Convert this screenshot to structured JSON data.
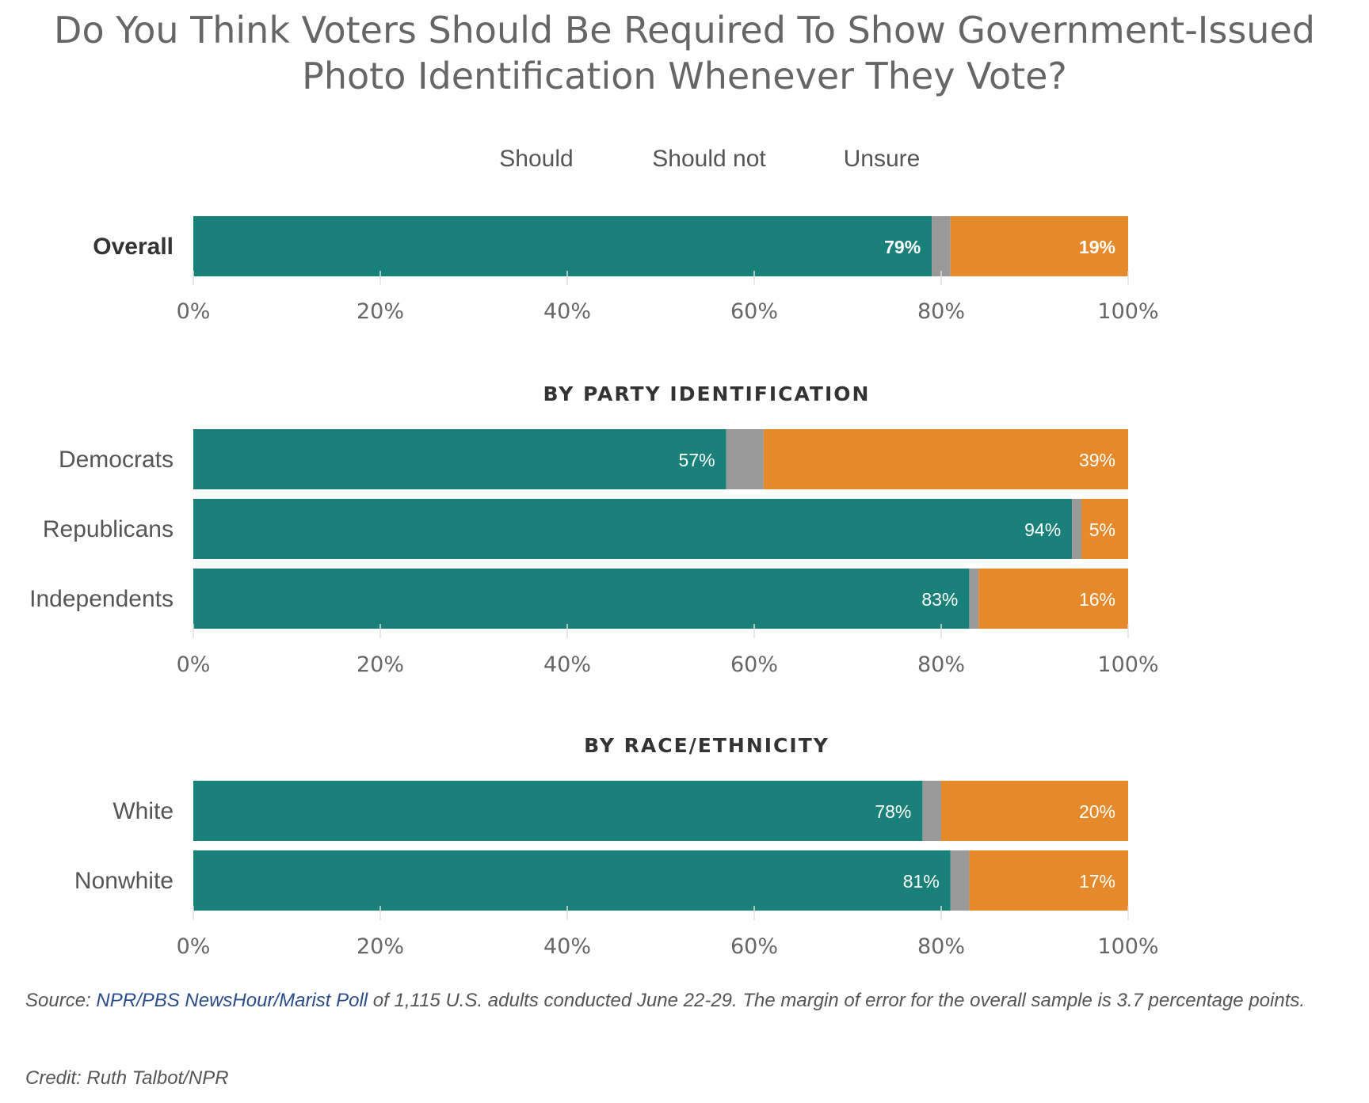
{
  "title_line1": "Do You Think Voters Should Be Required To Show Government-Issued",
  "title_line2": "Photo Identification Whenever They Vote?",
  "legend": [
    {
      "label": "Should",
      "color": "#1a807a"
    },
    {
      "label": "Should not",
      "color": "#e5892a"
    },
    {
      "label": "Unsure",
      "color": "#999999"
    }
  ],
  "source": {
    "prefix": "Source: ",
    "link_text": "NPR/PBS NewsHour/Marist Poll",
    "suffix": " of 1,115 U.S. adults conducted June 22-29. The margin of error for the overall sample is 3.7 percentage points."
  },
  "credit": "Credit: Ruth Talbot/NPR",
  "chart_data": {
    "type": "bar",
    "orientation": "horizontal",
    "stacked": true,
    "xlim": [
      0,
      100
    ],
    "ticks": [
      "0%",
      "20%",
      "40%",
      "60%",
      "80%",
      "100%"
    ],
    "series_order": [
      "Should",
      "Unsure",
      "Should not"
    ],
    "colors": {
      "Should": "#1a807a",
      "Unsure": "#999999",
      "Should not": "#e5892a"
    },
    "panels": [
      {
        "title": "",
        "rows": [
          {
            "category": "Overall",
            "bold": true,
            "Should": 79,
            "Unsure": 2,
            "Should not": 19,
            "label_should": "79%",
            "label_should_not": "19%"
          }
        ]
      },
      {
        "title": "BY PARTY IDENTIFICATION",
        "rows": [
          {
            "category": "Democrats",
            "Should": 57,
            "Unsure": 4,
            "Should not": 39,
            "label_should": "57%",
            "label_should_not": "39%"
          },
          {
            "category": "Republicans",
            "Should": 94,
            "Unsure": 1,
            "Should not": 5,
            "label_should": "94%",
            "label_should_not": "5%"
          },
          {
            "category": "Independents",
            "Should": 83,
            "Unsure": 1,
            "Should not": 16,
            "label_should": "83%",
            "label_should_not": "16%"
          }
        ]
      },
      {
        "title": "BY RACE/ETHNICITY",
        "rows": [
          {
            "category": "White",
            "Should": 78,
            "Unsure": 2,
            "Should not": 20,
            "label_should": "78%",
            "label_should_not": "20%"
          },
          {
            "category": "Nonwhite",
            "Should": 81,
            "Unsure": 2,
            "Should not": 17,
            "label_should": "81%",
            "label_should_not": "17%"
          }
        ]
      }
    ]
  }
}
